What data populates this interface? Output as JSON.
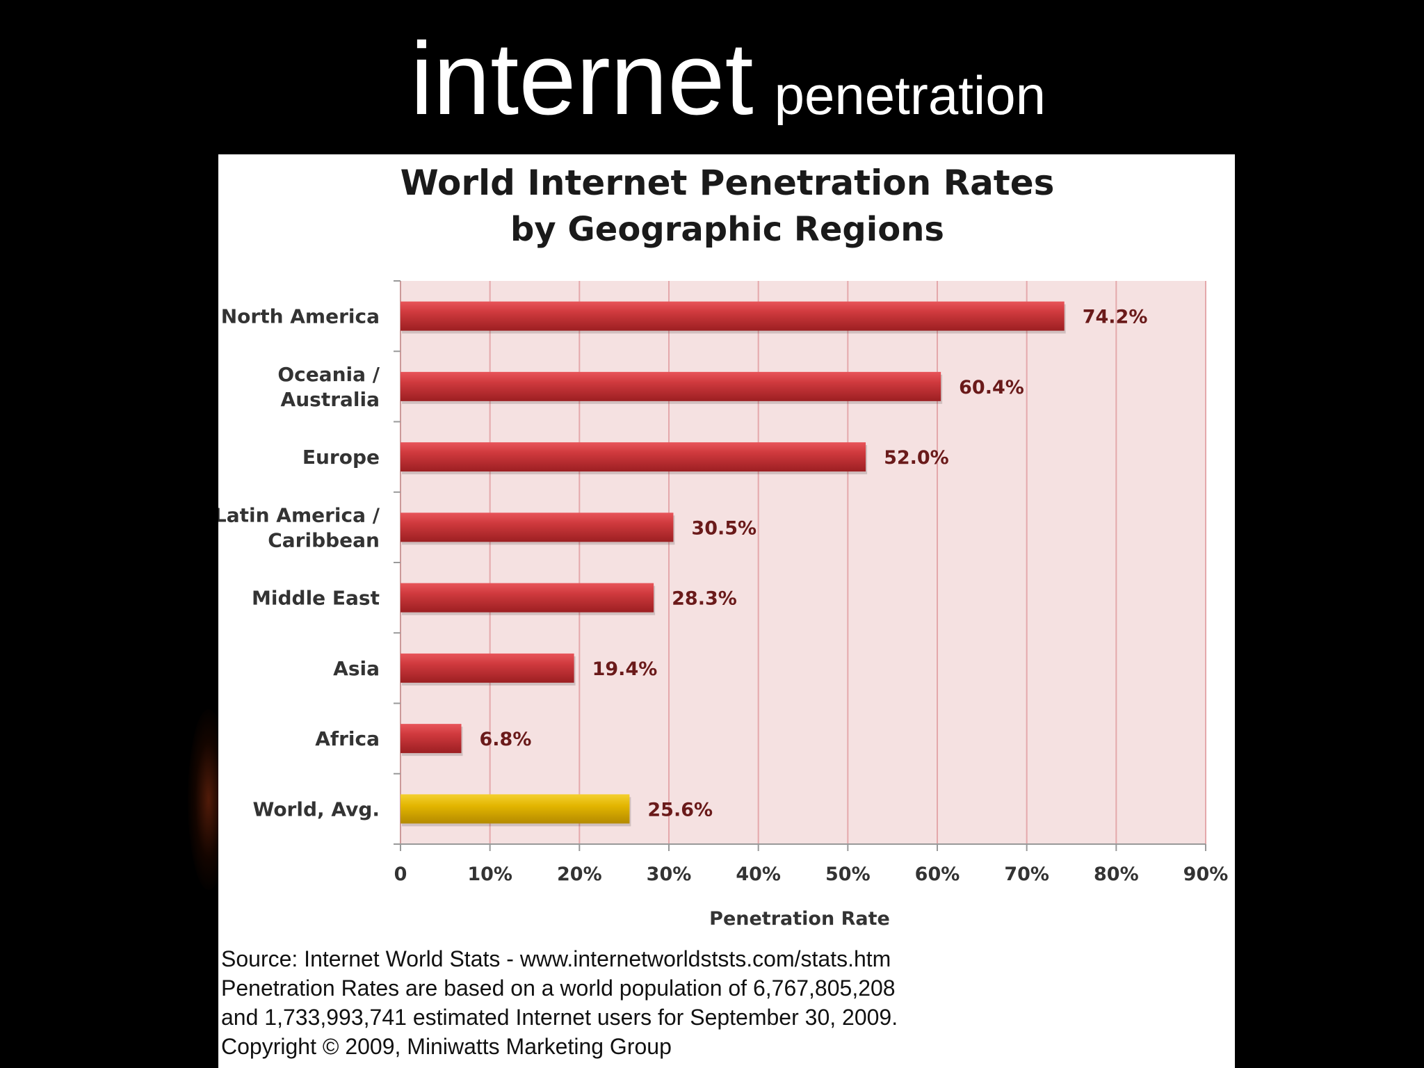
{
  "slide": {
    "title_main": "internet",
    "title_sub": "penetration"
  },
  "chart_data": {
    "type": "bar",
    "orientation": "horizontal",
    "title": "World Internet Penetration Rates",
    "subtitle": "by Geographic Regions",
    "categories": [
      [
        "North America"
      ],
      [
        "Oceania  /",
        "Australia"
      ],
      [
        "Europe"
      ],
      [
        "Latin America /",
        "Caribbean"
      ],
      [
        "Middle East"
      ],
      [
        "Asia"
      ],
      [
        "Africa"
      ],
      [
        "World, Avg."
      ]
    ],
    "values": [
      74.2,
      60.4,
      52.0,
      30.5,
      28.3,
      19.4,
      6.8,
      25.6
    ],
    "data_labels": [
      "74.2%",
      "60.4%",
      "52.0%",
      "30.5%",
      "28.3%",
      "19.4%",
      "6.8%",
      "25.6%"
    ],
    "highlight": [
      false,
      false,
      false,
      false,
      false,
      false,
      false,
      true
    ],
    "xlim": [
      0,
      90
    ],
    "ticks": [
      0,
      10,
      20,
      30,
      40,
      50,
      60,
      70,
      80,
      90
    ],
    "tick_labels": [
      "0",
      "10%",
      "20%",
      "30%",
      "40%",
      "50%",
      "60%",
      "70%",
      "80%",
      "90%"
    ],
    "xlabel": "Penetration Rate",
    "ylabel": "",
    "grid": true,
    "colors": {
      "bar": "#c62f33",
      "highlight_bar": "#e0b000",
      "plot_bg": "#f5e1e1",
      "grid": "#e4a8ab",
      "label": "#6a1a1a"
    }
  },
  "source_lines": [
    "Source: Internet World Stats - www.internetworldststs.com/stats.htm",
    "Penetration Rates are based on a world population of 6,767,805,208",
    "and 1,733,993,741 estimated Internet users for September 30, 2009.",
    "Copyright © 2009, Miniwatts Marketing Group"
  ]
}
